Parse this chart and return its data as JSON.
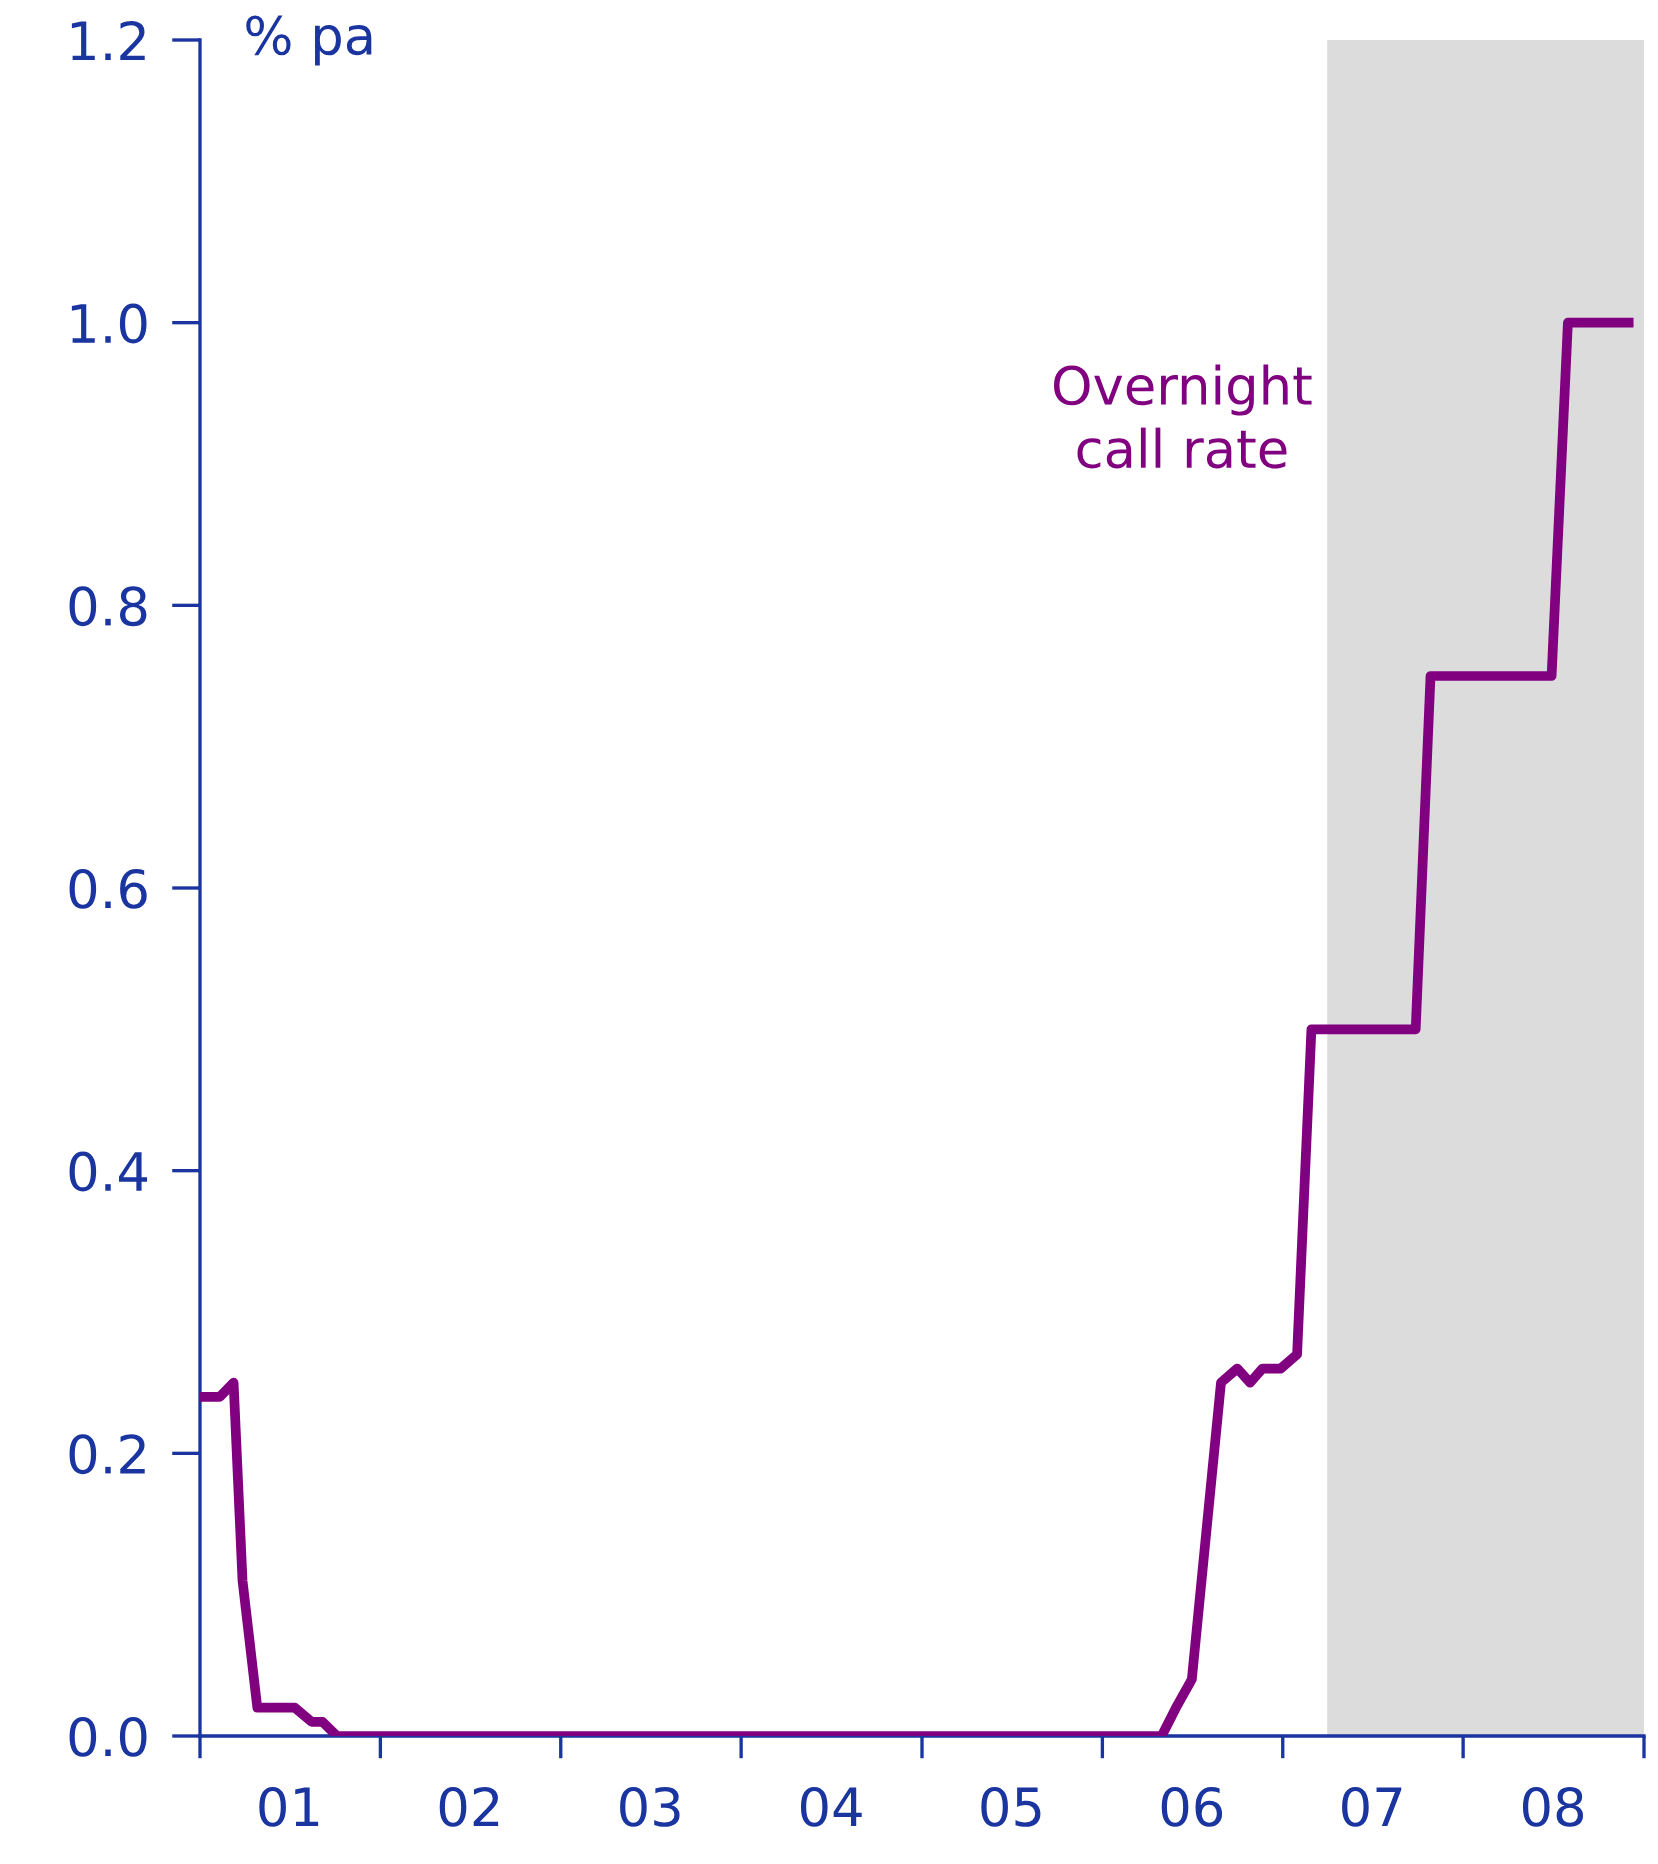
{
  "chart_data": {
    "type": "line",
    "ylabel": "% pa",
    "annotations": [
      "Overnight\ncall rate"
    ],
    "series": [
      {
        "color": "#800080",
        "x": [
          "2001-01-01",
          "2001-02-10",
          "2001-03-10",
          "2001-03-28",
          "2001-04-27",
          "2001-07-12",
          "2001-08-15",
          "2001-09-06",
          "2001-10-05",
          "2006-05-01",
          "2006-05-30",
          "2006-07-01",
          "2006-08-29",
          "2006-10-01",
          "2006-10-27",
          "2006-11-21",
          "2006-12-28",
          "2007-01-30",
          "2007-02-28",
          "2007-09-27",
          "2007-10-27",
          "2008-06-28",
          "2008-07-31",
          "2008-12-01"
        ],
        "values": [
          0.24,
          0.24,
          0.25,
          0.11,
          0.02,
          0.02,
          0.01,
          0.01,
          0,
          0,
          0.02,
          0.04,
          0.25,
          0.26,
          0.25,
          0.26,
          0.26,
          0.27,
          0.5,
          0.5,
          0.75,
          0.75,
          1.0,
          1.0
        ]
      }
    ],
    "xlim": [
      "2001-01-01",
      "2009-01-01"
    ],
    "xticks": [
      {
        "value": "2001-01-01",
        "label": null
      },
      {
        "value": "2001-07-01",
        "label": "01"
      },
      {
        "value": "2002-01-01",
        "label": null
      },
      {
        "value": "2002-07-01",
        "label": "02"
      },
      {
        "value": "2003-01-01",
        "label": null
      },
      {
        "value": "2003-07-01",
        "label": "03"
      },
      {
        "value": "2004-01-01",
        "label": null
      },
      {
        "value": "2004-07-01",
        "label": "04"
      },
      {
        "value": "2005-01-01",
        "label": null
      },
      {
        "value": "2005-07-01",
        "label": "05"
      },
      {
        "value": "2006-01-01",
        "label": null
      },
      {
        "value": "2006-07-01",
        "label": "06"
      },
      {
        "value": "2007-01-01",
        "label": null
      },
      {
        "value": "2007-07-01",
        "label": "07"
      },
      {
        "value": "2008-01-01",
        "label": null
      },
      {
        "value": "2008-07-01",
        "label": "08"
      },
      {
        "value": "2009-01-01",
        "label": null
      }
    ],
    "ylim": [
      0,
      1.2
    ],
    "yticks": [
      {
        "value": 0,
        "label": "0.0"
      },
      {
        "value": 0.2,
        "label": "0.2"
      },
      {
        "value": 0.4,
        "label": "0.4"
      },
      {
        "value": 0.6,
        "label": "0.6"
      },
      {
        "value": 0.8,
        "label": "0.8"
      },
      {
        "value": 1.0,
        "label": "1.0"
      },
      {
        "value": 1.2,
        "label": "1.2"
      }
    ],
    "bands": [
      {
        "axis": "x",
        "from": "2007-04-01",
        "to": "2009-01-01",
        "color": "#dcdcdc"
      }
    ],
    "grid": false,
    "line_style": "solid"
  }
}
